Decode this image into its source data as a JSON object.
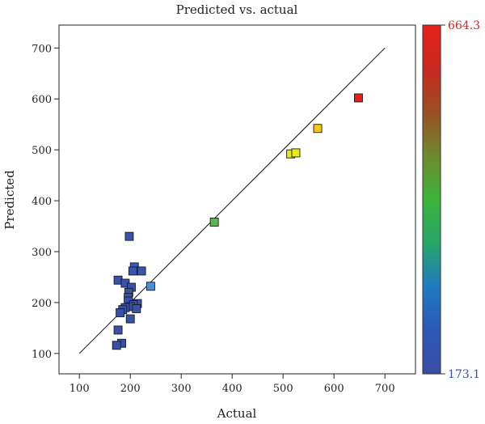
{
  "chart_data": {
    "type": "scatter",
    "title": "Predicted vs. actual",
    "xlabel": "Actual",
    "ylabel": "Predicted",
    "xlim": [
      60,
      760
    ],
    "ylim": [
      60,
      745
    ],
    "xticks": [
      "100",
      "200",
      "300",
      "400",
      "500",
      "600",
      "700"
    ],
    "yticks": [
      "100",
      "200",
      "300",
      "400",
      "500",
      "600",
      "700"
    ],
    "grid": false,
    "reference_line": {
      "from": [
        100,
        100
      ],
      "to": [
        700,
        700
      ]
    },
    "colorbar": {
      "max_label": "664.3",
      "min_label": "173.1",
      "max": 664.3,
      "min": 173.1,
      "colors": [
        "#3a4ea3",
        "#2c58b8",
        "#1f7ac0",
        "#27a66a",
        "#3cb43a",
        "#6e8a2c",
        "#9a4e24",
        "#c8281e",
        "#e8201c"
      ]
    },
    "points": [
      {
        "x": 198,
        "y": 330,
        "c": 180
      },
      {
        "x": 208,
        "y": 270,
        "c": 190
      },
      {
        "x": 222,
        "y": 262,
        "c": 185
      },
      {
        "x": 205,
        "y": 262,
        "c": 183
      },
      {
        "x": 176,
        "y": 244,
        "c": 178
      },
      {
        "x": 190,
        "y": 238,
        "c": 180
      },
      {
        "x": 240,
        "y": 232,
        "c": 270
      },
      {
        "x": 202,
        "y": 230,
        "c": 182
      },
      {
        "x": 197,
        "y": 220,
        "c": 180
      },
      {
        "x": 196,
        "y": 210,
        "c": 181
      },
      {
        "x": 196,
        "y": 203,
        "c": 179
      },
      {
        "x": 214,
        "y": 198,
        "c": 182
      },
      {
        "x": 206,
        "y": 196,
        "c": 181
      },
      {
        "x": 200,
        "y": 192,
        "c": 180
      },
      {
        "x": 190,
        "y": 190,
        "c": 178
      },
      {
        "x": 185,
        "y": 186,
        "c": 177
      },
      {
        "x": 212,
        "y": 188,
        "c": 179
      },
      {
        "x": 180,
        "y": 180,
        "c": 176
      },
      {
        "x": 200,
        "y": 168,
        "c": 178
      },
      {
        "x": 176,
        "y": 146,
        "c": 175
      },
      {
        "x": 183,
        "y": 120,
        "c": 174
      },
      {
        "x": 173,
        "y": 116,
        "c": 173.1
      },
      {
        "x": 365,
        "y": 358,
        "c": 365
      },
      {
        "x": 515,
        "y": 492,
        "c": 505
      },
      {
        "x": 525,
        "y": 494,
        "c": 510
      },
      {
        "x": 568,
        "y": 542,
        "c": 560
      },
      {
        "x": 648,
        "y": 602,
        "c": 664.3
      }
    ]
  }
}
